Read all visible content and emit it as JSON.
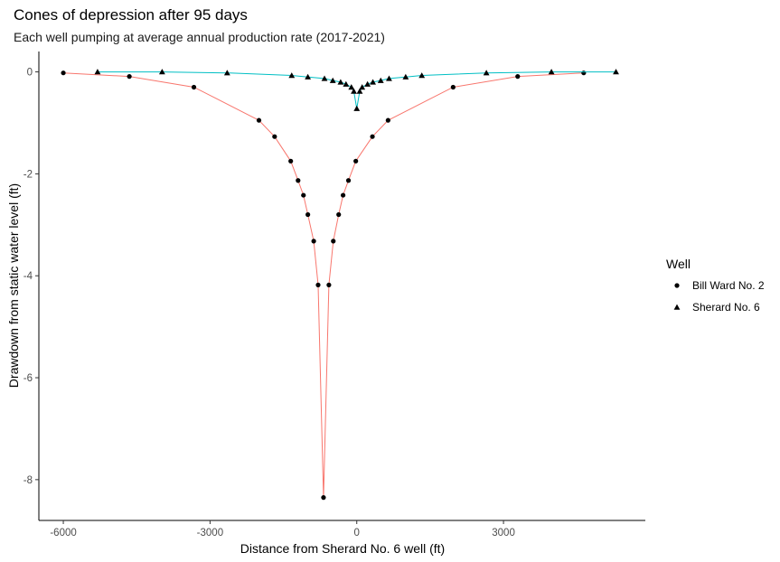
{
  "chart_data": {
    "type": "line",
    "title": "Cones of depression after 95 days",
    "subtitle": "Each well pumping at average annual production rate (2017-2021)",
    "xlabel": "Distance from Sherard No. 6 well (ft)",
    "ylabel": "Drawdown from static water level (ft)",
    "xlim": [
      -6500,
      5900
    ],
    "ylim": [
      -8.8,
      0.4
    ],
    "x_ticks": [
      -6000,
      -3000,
      0,
      3000
    ],
    "x_tick_labels": [
      "-6000",
      "-3000",
      "0",
      "3000"
    ],
    "y_ticks": [
      0,
      -2,
      -4,
      -6,
      -8
    ],
    "y_tick_labels": [
      "0",
      "-2",
      "-4",
      "-6",
      "-8"
    ],
    "grid": false,
    "legend": {
      "title": "Well",
      "position": "right"
    },
    "series": [
      {
        "name": "Bill Ward No. 2",
        "color": "#F8766D",
        "marker": "circle",
        "points": [
          [
            -6000,
            -0.02
          ],
          [
            -4650,
            -0.09
          ],
          [
            -3330,
            -0.3
          ],
          [
            -2000,
            -0.95
          ],
          [
            -1680,
            -1.27
          ],
          [
            -1350,
            -1.75
          ],
          [
            -1200,
            -2.13
          ],
          [
            -1090,
            -2.42
          ],
          [
            -1000,
            -2.8
          ],
          [
            -880,
            -3.32
          ],
          [
            -790,
            -4.18
          ],
          [
            -680,
            -8.35
          ],
          [
            -570,
            -4.18
          ],
          [
            -480,
            -3.32
          ],
          [
            -370,
            -2.8
          ],
          [
            -280,
            -2.42
          ],
          [
            -170,
            -2.13
          ],
          [
            -20,
            -1.75
          ],
          [
            320,
            -1.27
          ],
          [
            640,
            -0.95
          ],
          [
            1970,
            -0.3
          ],
          [
            3290,
            -0.09
          ],
          [
            4640,
            -0.02
          ]
        ]
      },
      {
        "name": "Sherard No. 6",
        "color": "#00BFC4",
        "marker": "triangle",
        "points": [
          [
            -5300,
            0.0
          ],
          [
            -3980,
            0.0
          ],
          [
            -2650,
            -0.02
          ],
          [
            -1330,
            -0.07
          ],
          [
            -1000,
            -0.1
          ],
          [
            -660,
            -0.13
          ],
          [
            -490,
            -0.17
          ],
          [
            -330,
            -0.2
          ],
          [
            -220,
            -0.24
          ],
          [
            -110,
            -0.3
          ],
          [
            -60,
            -0.38
          ],
          [
            0,
            -0.72
          ],
          [
            60,
            -0.38
          ],
          [
            110,
            -0.3
          ],
          [
            220,
            -0.24
          ],
          [
            330,
            -0.2
          ],
          [
            490,
            -0.17
          ],
          [
            660,
            -0.13
          ],
          [
            1000,
            -0.1
          ],
          [
            1330,
            -0.07
          ],
          [
            2650,
            -0.02
          ],
          [
            3980,
            0.0
          ],
          [
            5300,
            0.0
          ]
        ]
      }
    ]
  }
}
